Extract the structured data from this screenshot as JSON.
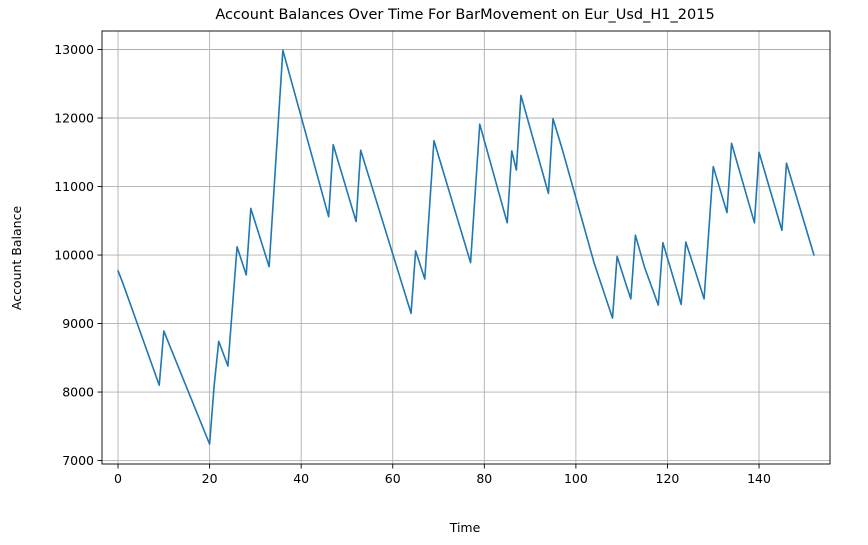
{
  "chart_data": {
    "type": "line",
    "title": "Account Balances Over Time For BarMovement on Eur_Usd_H1_2015",
    "xlabel": "Time",
    "ylabel": "Account Balance",
    "xlim": [
      -3.5,
      155.5
    ],
    "ylim": [
      6950,
      13270
    ],
    "xticks": [
      0,
      20,
      40,
      60,
      80,
      100,
      120,
      140
    ],
    "yticks": [
      7000,
      8000,
      9000,
      10000,
      11000,
      12000,
      13000
    ],
    "grid": true,
    "colors": {
      "line": "#1f77b4"
    },
    "series": [
      {
        "x": [
          0,
          1,
          9,
          10,
          20,
          21,
          22,
          24,
          26,
          28,
          29,
          33,
          36,
          46,
          47,
          52,
          53,
          64,
          65,
          67,
          69,
          77,
          79,
          85,
          86,
          87,
          88,
          94,
          95,
          96,
          97,
          104,
          108,
          109,
          111,
          112,
          113,
          115,
          118,
          119,
          121,
          123,
          124,
          126,
          128,
          130,
          133,
          134,
          139,
          140,
          145,
          146,
          152
        ],
        "y": [
          9770,
          9600,
          8100,
          8890,
          7240,
          8100,
          8740,
          8380,
          10120,
          9710,
          10680,
          9830,
          12990,
          10560,
          11610,
          10490,
          11530,
          9150,
          10060,
          9650,
          11670,
          9890,
          11910,
          10470,
          11520,
          11240,
          12330,
          10900,
          11990,
          11770,
          11550,
          9880,
          9080,
          9980,
          9560,
          9360,
          10290,
          9820,
          9270,
          10180,
          9730,
          9280,
          10190,
          9780,
          9360,
          11290,
          10620,
          11630,
          10470,
          11500,
          10360,
          11340,
          10000
        ]
      }
    ]
  }
}
